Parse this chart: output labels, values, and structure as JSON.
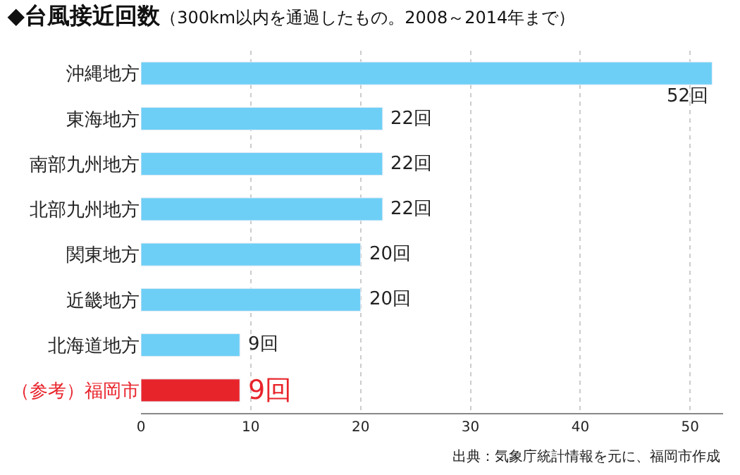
{
  "chart_data": {
    "type": "bar",
    "orientation": "horizontal",
    "title": "◆台風接近回数",
    "subtitle": "（300km以内を通過したもの。2008～2014年まで）",
    "categories": [
      "沖縄地方",
      "東海地方",
      "南部九州地方",
      "北部九州地方",
      "関東地方",
      "近畿地方",
      "北海道地方",
      "（参考）福岡市"
    ],
    "values": [
      52,
      22,
      22,
      22,
      20,
      20,
      9,
      9
    ],
    "colors": [
      "#6dcff6",
      "#6dcff6",
      "#6dcff6",
      "#6dcff6",
      "#6dcff6",
      "#6dcff6",
      "#6dcff6",
      "#e8242b"
    ],
    "value_labels": [
      "52回",
      "22回",
      "22回",
      "22回",
      "20回",
      "20回",
      "9回",
      "9回"
    ],
    "xlim": [
      0,
      53
    ],
    "xticks": [
      0,
      10,
      20,
      30,
      40,
      50
    ],
    "grid": "x",
    "legend": false,
    "annotations": [
      "出典：気象庁統計情報を元に、福岡市作成"
    ]
  }
}
